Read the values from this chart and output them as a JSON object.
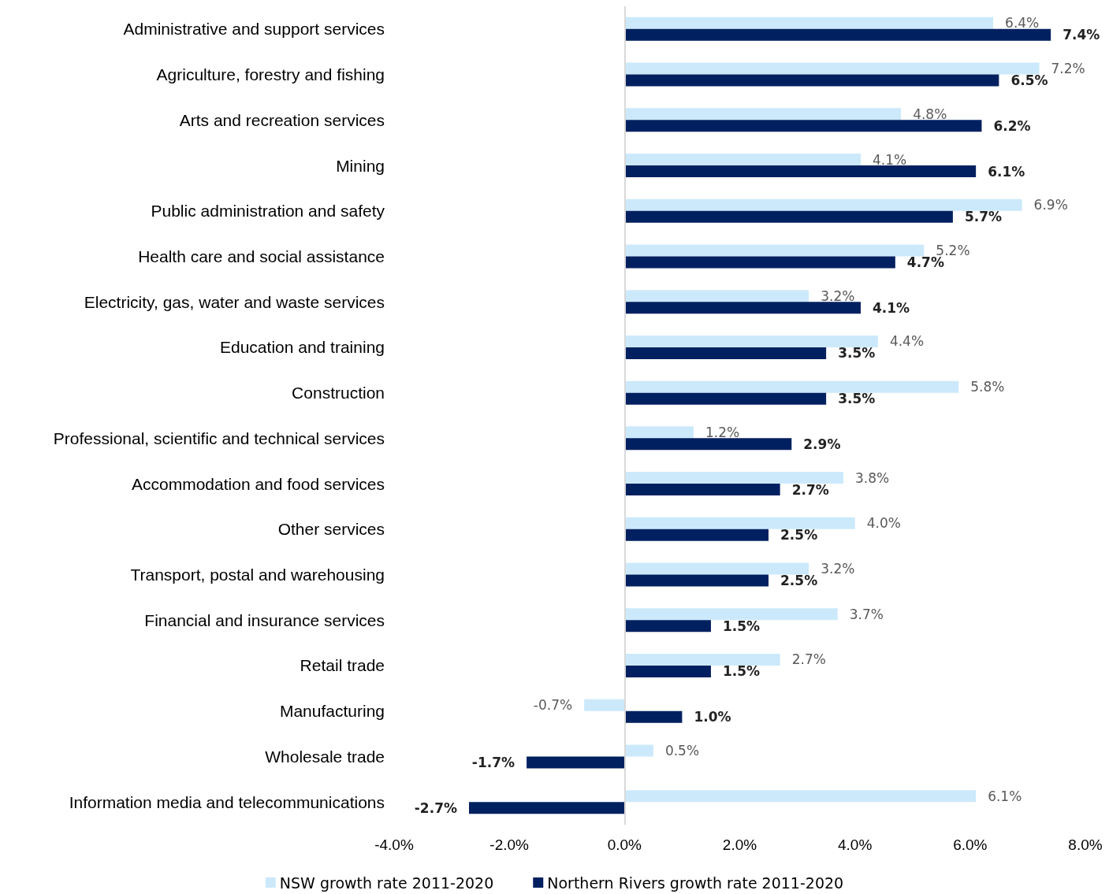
{
  "chart_data": {
    "type": "bar",
    "orientation": "horizontal",
    "categories": [
      "Administrative and support services",
      "Agriculture, forestry and fishing",
      "Arts and recreation services",
      "Mining",
      "Public administration and safety",
      "Health care and social assistance",
      "Electricity, gas, water and waste services",
      "Education and training",
      "Construction",
      "Professional, scientific and technical services",
      "Accommodation and food services",
      "Other services",
      "Transport, postal and warehousing",
      "Financial and insurance services",
      "Retail trade",
      "Manufacturing",
      "Wholesale trade",
      "Information media and telecommunications"
    ],
    "series": [
      {
        "name": "NSW growth rate 2011-2020",
        "color": "#cce9fb",
        "values": [
          6.4,
          7.2,
          4.8,
          4.1,
          6.9,
          5.2,
          3.2,
          4.4,
          5.8,
          1.2,
          3.8,
          4.0,
          3.2,
          3.7,
          2.7,
          -0.7,
          0.5,
          6.1
        ],
        "value_labels": [
          "6.4%",
          "7.2%",
          "4.8%",
          "4.1%",
          "6.9%",
          "5.2%",
          "3.2%",
          "4.4%",
          "5.8%",
          "1.2%",
          "3.8%",
          "4.0%",
          "3.2%",
          "3.7%",
          "2.7%",
          "-0.7%",
          "0.5%",
          "6.1%"
        ]
      },
      {
        "name": "Northern Rivers growth rate 2011-2020",
        "color": "#002060",
        "values": [
          7.4,
          6.5,
          6.2,
          6.1,
          5.7,
          4.7,
          4.1,
          3.5,
          3.5,
          2.9,
          2.7,
          2.5,
          2.5,
          1.5,
          1.5,
          1.0,
          -1.7,
          -2.7
        ],
        "value_labels": [
          "7.4%",
          "6.5%",
          "6.2%",
          "6.1%",
          "5.7%",
          "4.7%",
          "4.1%",
          "3.5%",
          "3.5%",
          "2.9%",
          "2.7%",
          "2.5%",
          "2.5%",
          "1.5%",
          "1.5%",
          "1.0%",
          "-1.7%",
          "-2.7%"
        ]
      }
    ],
    "xlim": [
      -4,
      8
    ],
    "xticks": [
      {
        "value": -4,
        "label": "-4.0%"
      },
      {
        "value": -2,
        "label": "-2.0%"
      },
      {
        "value": 0,
        "label": "0.0%"
      },
      {
        "value": 2,
        "label": "2.0%"
      },
      {
        "value": 4,
        "label": "4.0%"
      },
      {
        "value": 6,
        "label": "6.0%"
      },
      {
        "value": 8,
        "label": "8.0%"
      }
    ],
    "ref_lines": [
      {
        "axis": "x",
        "value": 0,
        "color": "#d9d9d9"
      }
    ],
    "grid": false,
    "legend": "bottom"
  }
}
